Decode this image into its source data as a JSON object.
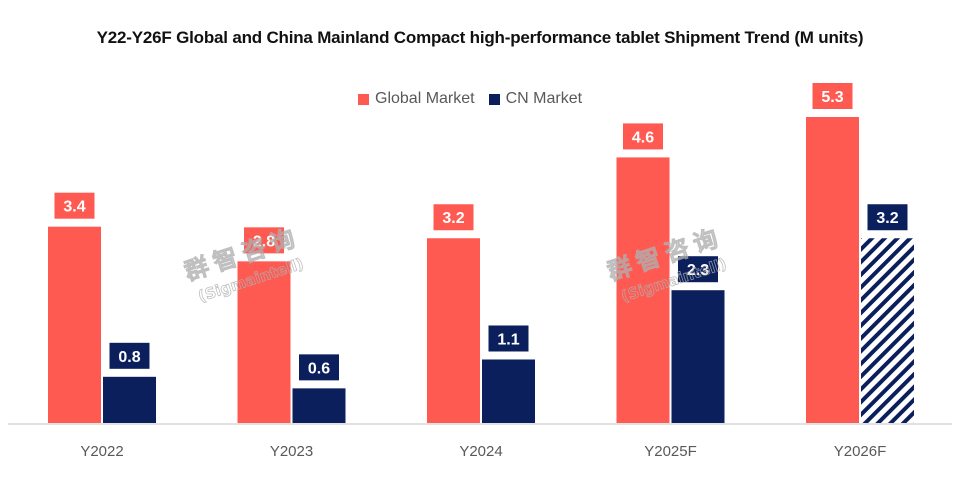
{
  "chart_data": {
    "type": "bar",
    "title": "Y22-Y26F Global and China Mainland Compact high-performance tablet Shipment Trend (M units)",
    "categories": [
      "Y2022",
      "Y2023",
      "Y2024",
      "Y2025F",
      "Y2026F"
    ],
    "series": [
      {
        "name": "Global Market",
        "color": "#FF5A51",
        "values": [
          3.4,
          2.8,
          3.2,
          4.6,
          5.3
        ],
        "labels": [
          "3.4",
          "2.8",
          "3.2",
          "4.6",
          "5.3"
        ]
      },
      {
        "name": "CN Market",
        "color": "#0B1F5C",
        "values": [
          0.8,
          0.6,
          1.1,
          2.3,
          3.2
        ],
        "labels": [
          "0.8",
          "0.6",
          "1.1",
          "2.3",
          "3.2"
        ],
        "hatched_categories": [
          "Y2026F"
        ]
      }
    ],
    "xlabel": "",
    "ylabel": "",
    "ylim": [
      0,
      5.3
    ],
    "grid": false,
    "legend_position": "top-center",
    "watermark": [
      "群智咨询",
      "(Sigmaintell)"
    ]
  }
}
